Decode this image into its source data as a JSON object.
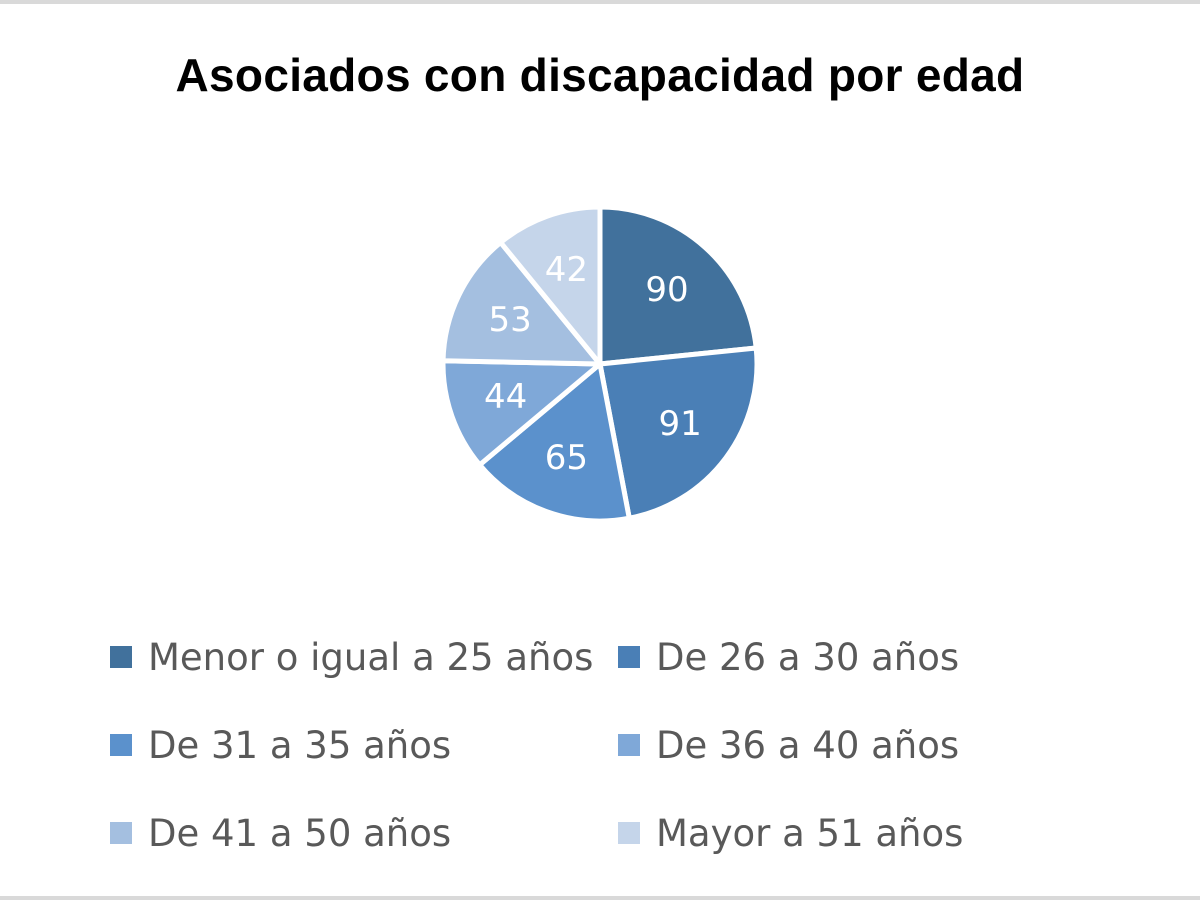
{
  "chart_data": {
    "type": "pie",
    "title": "Asociados con discapacidad por edad",
    "categories": [
      "Menor o igual a 25 años",
      "De 26 a 30 años",
      "De 31 a 35 años",
      "De 36 a 40 años",
      "De 41 a 50 años",
      "Mayor a 51 años"
    ],
    "values": [
      90,
      91,
      65,
      44,
      53,
      42
    ],
    "colors": [
      "#41719c",
      "#4a7fb6",
      "#5b91cc",
      "#7fa8d8",
      "#a4bfe0",
      "#c5d5ea"
    ],
    "data_labels": true,
    "legend_position": "bottom"
  }
}
